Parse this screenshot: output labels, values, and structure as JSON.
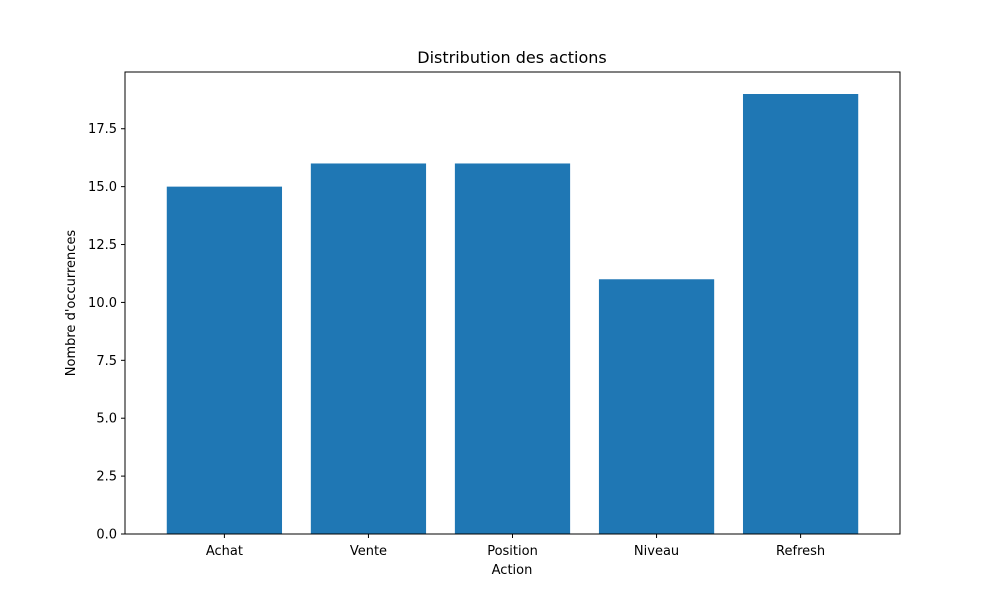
{
  "chart_data": {
    "type": "bar",
    "title": "Distribution des actions",
    "xlabel": "Action",
    "ylabel": "Nombre d'occurrences",
    "categories": [
      "Achat",
      "Vente",
      "Position",
      "Niveau",
      "Refresh"
    ],
    "values": [
      15,
      16,
      16,
      11,
      19
    ],
    "ylim": [
      0,
      19.95
    ],
    "yticks": [
      0.0,
      2.5,
      5.0,
      7.5,
      10.0,
      12.5,
      15.0,
      17.5
    ],
    "ytick_labels": [
      "0.0",
      "2.5",
      "5.0",
      "7.5",
      "10.0",
      "12.5",
      "15.0",
      "17.5"
    ],
    "bar_color": "#1f77b4",
    "grid": false,
    "legend": "none"
  }
}
